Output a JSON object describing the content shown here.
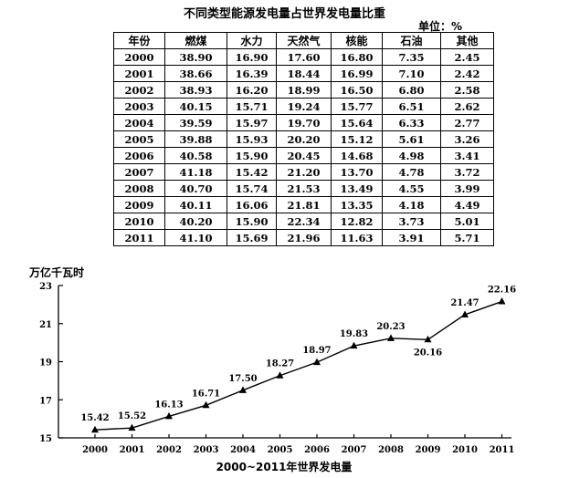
{
  "table": {
    "title": "不同类型能源发电量占世界发电量比重",
    "unit": "单位：%",
    "headers": [
      "年份",
      "燃煤",
      "水力",
      "天然气",
      "核能",
      "石油",
      "其他"
    ],
    "rows": [
      [
        "2000",
        "38.90",
        "16.90",
        "17.60",
        "16.80",
        "7.35",
        "2.45"
      ],
      [
        "2001",
        "38.66",
        "16.39",
        "18.44",
        "16.99",
        "7.10",
        "2.42"
      ],
      [
        "2002",
        "38.93",
        "16.20",
        "18.99",
        "16.50",
        "6.80",
        "2.58"
      ],
      [
        "2003",
        "40.15",
        "15.71",
        "19.24",
        "15.77",
        "6.51",
        "2.62"
      ],
      [
        "2004",
        "39.59",
        "15.97",
        "19.70",
        "15.64",
        "6.33",
        "2.77"
      ],
      [
        "2005",
        "39.88",
        "15.93",
        "20.20",
        "15.12",
        "5.61",
        "3.26"
      ],
      [
        "2006",
        "40.58",
        "15.90",
        "20.45",
        "14.68",
        "4.98",
        "3.41"
      ],
      [
        "2007",
        "41.18",
        "15.42",
        "21.20",
        "13.70",
        "4.78",
        "3.72"
      ],
      [
        "2008",
        "40.70",
        "15.74",
        "21.53",
        "13.49",
        "4.55",
        "3.99"
      ],
      [
        "2009",
        "40.11",
        "16.06",
        "21.81",
        "13.35",
        "4.18",
        "4.49"
      ],
      [
        "2010",
        "40.20",
        "15.90",
        "22.34",
        "12.82",
        "3.73",
        "5.01"
      ],
      [
        "2011",
        "41.10",
        "15.69",
        "21.96",
        "11.63",
        "3.91",
        "5.71"
      ]
    ]
  },
  "chart_data": {
    "type": "line",
    "title": "2000~2011年世界发电量",
    "ylabel": "万亿千瓦时",
    "xlabel": "",
    "x": [
      "2000",
      "2001",
      "2002",
      "2003",
      "2004",
      "2005",
      "2006",
      "2007",
      "2008",
      "2009",
      "2010",
      "2011"
    ],
    "values": [
      15.42,
      15.52,
      16.13,
      16.71,
      17.5,
      18.27,
      18.97,
      19.83,
      20.23,
      20.16,
      21.47,
      22.16
    ],
    "data_labels": [
      "15.42",
      "15.52",
      "16.13",
      "16.71",
      "17.50",
      "18.27",
      "18.97",
      "19.83",
      "20.23",
      "20.16",
      "21.47",
      "22.16"
    ],
    "yticks": [
      "15",
      "17",
      "19",
      "21",
      "23"
    ],
    "ylim": [
      15,
      23
    ],
    "grid": false,
    "marker": "triangle",
    "color": "#000000"
  }
}
